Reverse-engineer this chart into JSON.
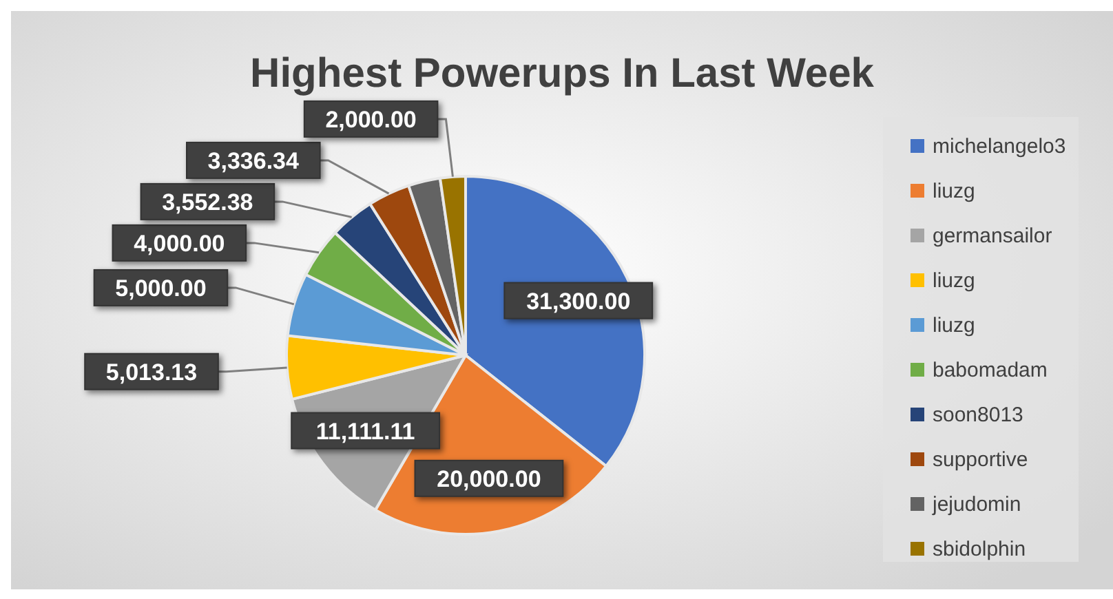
{
  "chart_data": {
    "type": "pie",
    "title": "Highest Powerups In Last Week",
    "categories": [
      "michelangelo3",
      "liuzg",
      "germansailor",
      "liuzg",
      "liuzg",
      "babomadam",
      "soon8013",
      "supportive",
      "jejudomin",
      "sbidolphin"
    ],
    "values": [
      31300,
      20000,
      11111.11,
      5013.13,
      5000,
      4000,
      3552.38,
      3336.34,
      2530,
      2000
    ],
    "value_labels": [
      "31,300.00",
      "20,000.00",
      "11,111.11",
      "5,013.13",
      "5,000.00",
      "4,000.00",
      "3,552.38",
      "3,336.34",
      null,
      "2,000.00"
    ],
    "colors": [
      "#4472c4",
      "#ed7d31",
      "#a5a5a5",
      "#ffc000",
      "#5b9bd5",
      "#70ad47",
      "#264478",
      "#9e480e",
      "#636363",
      "#997300"
    ],
    "legend": "right"
  }
}
